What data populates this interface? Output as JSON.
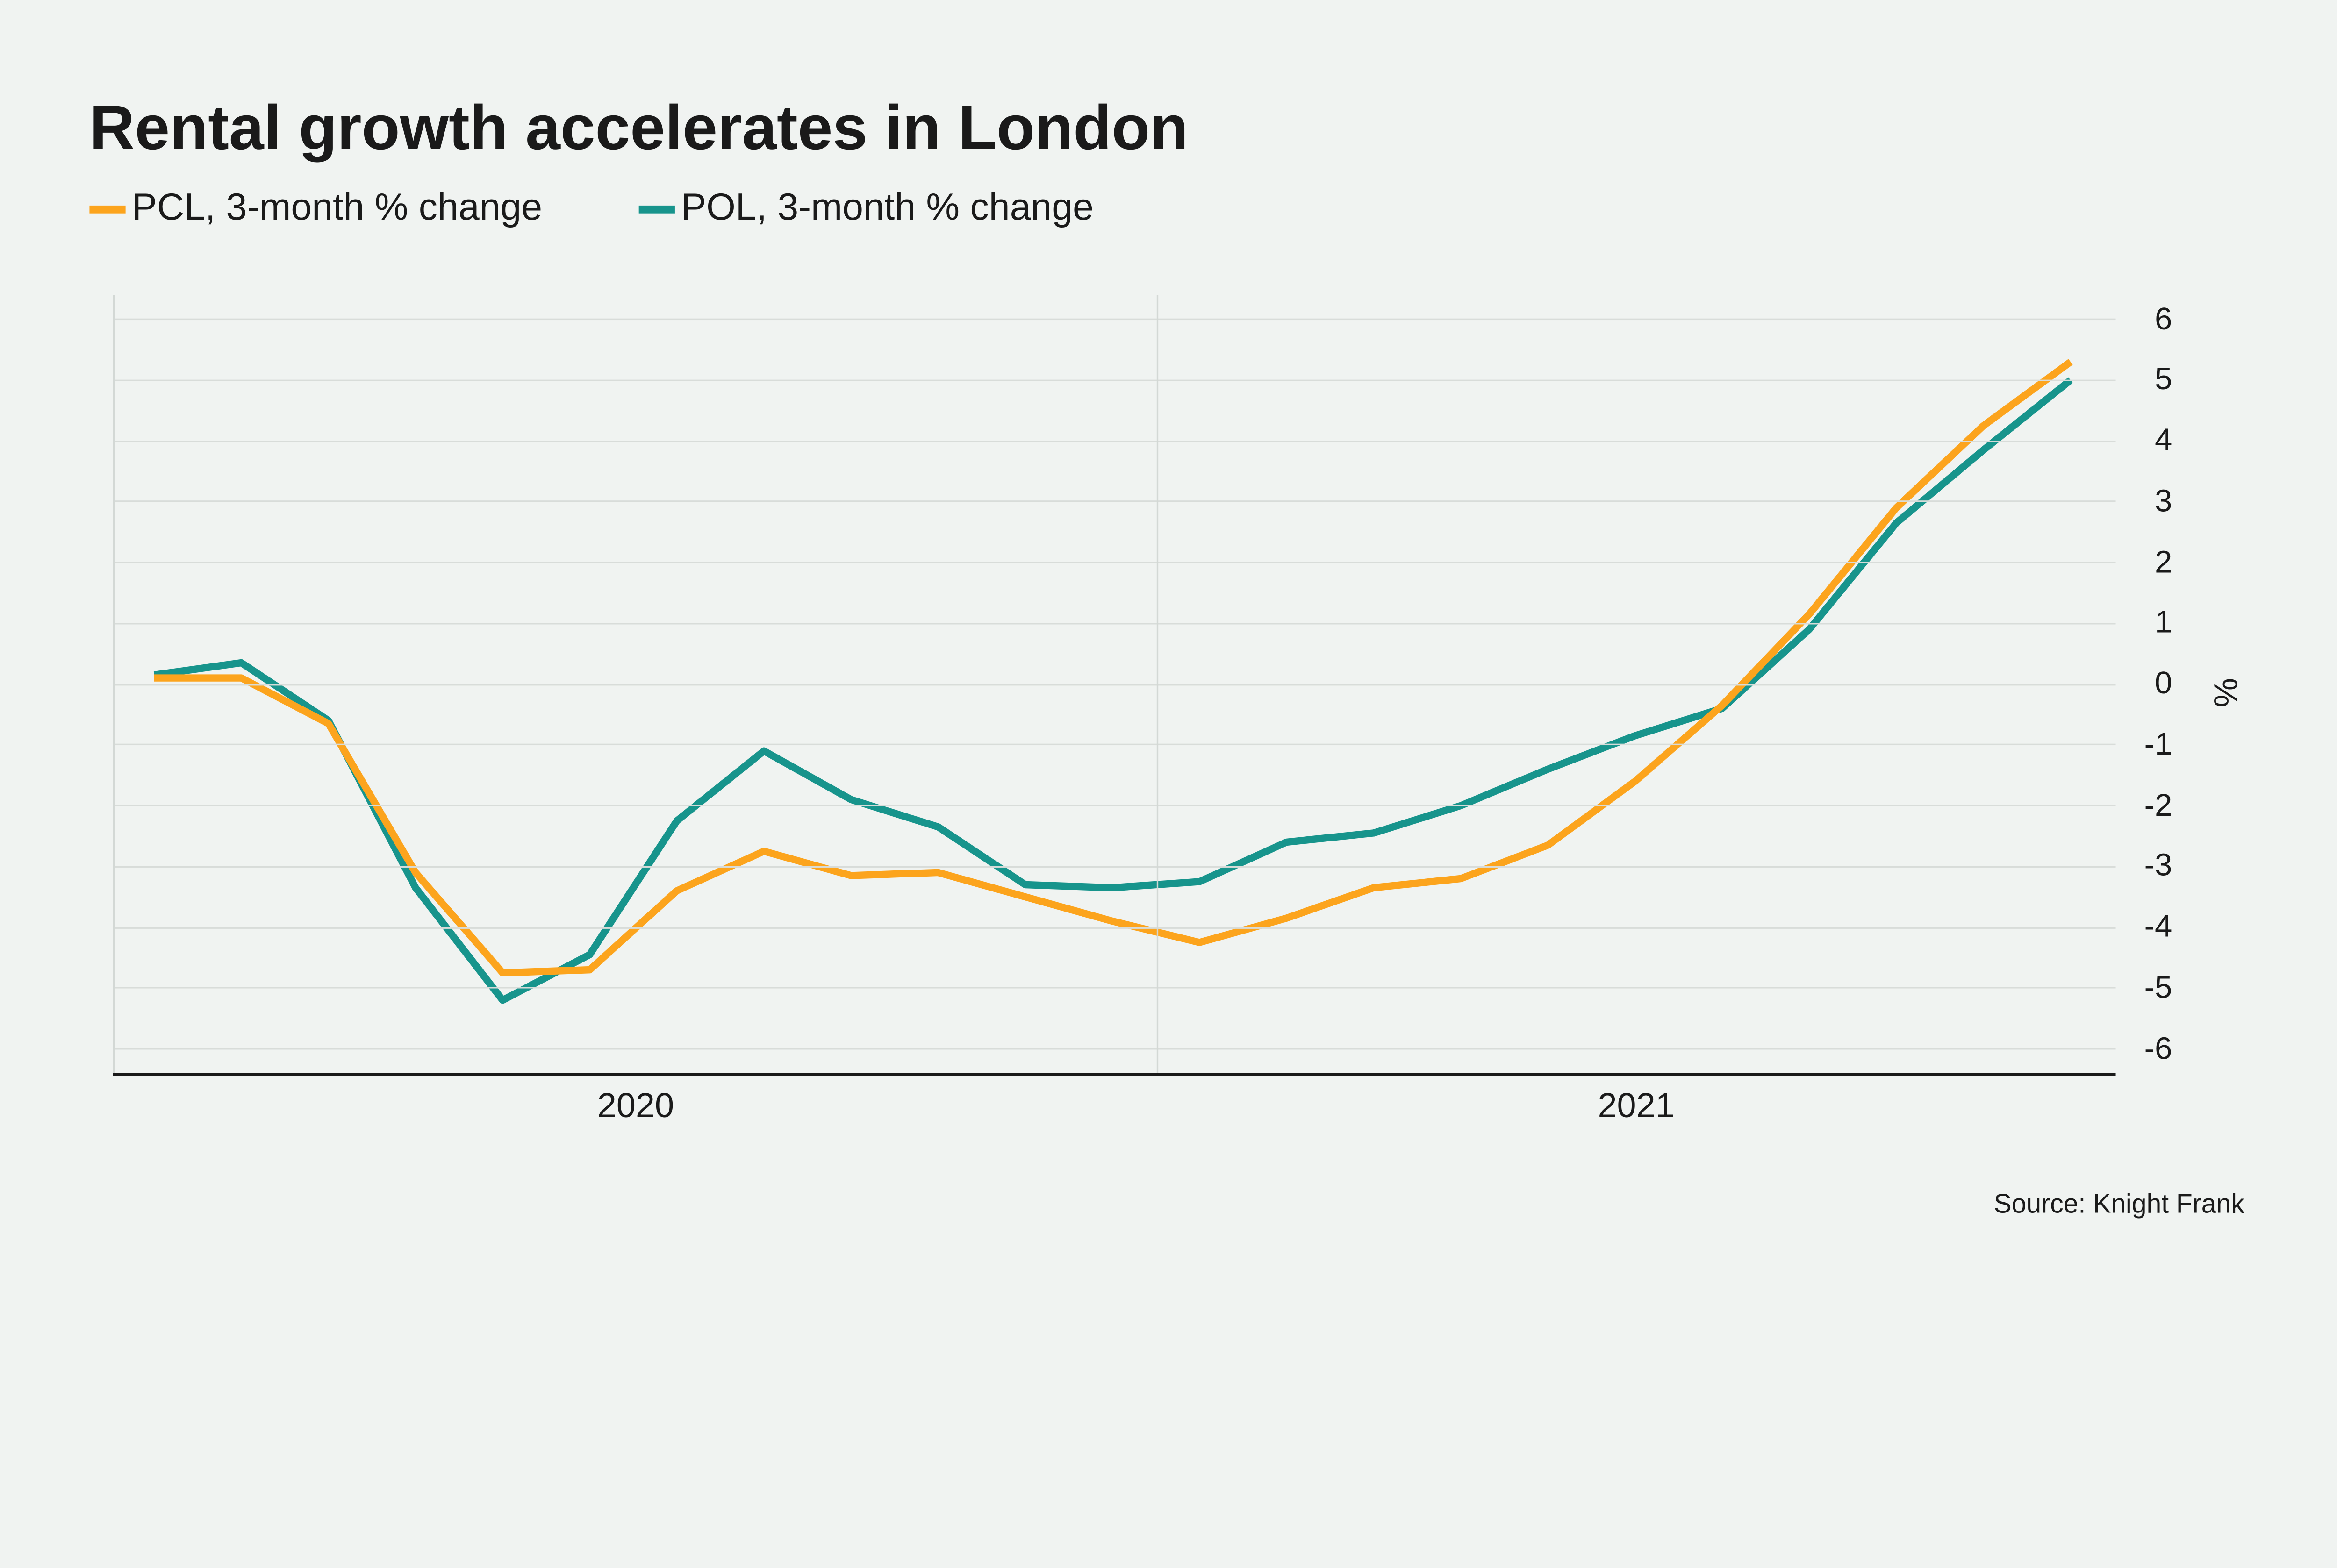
{
  "title": "Rental growth accelerates in London",
  "legend": {
    "items": [
      {
        "label": "PCL, 3-month % change",
        "color": "#FCA41D"
      },
      {
        "label": "POL, 3-month % change",
        "color": "#17948C"
      }
    ]
  },
  "source": "Source: Knight Frank",
  "colors": {
    "background": "#F0F3F1",
    "gridline": "#D8DCD9",
    "axis": "#1A1A1A",
    "text": "#1A1A1A",
    "pcl": "#FCA41D",
    "pol": "#17948C"
  },
  "chart_data": {
    "type": "line",
    "title": "Rental growth accelerates in London",
    "xlabel": "",
    "ylabel": "%",
    "ylim": [
      -6.4,
      6.4
    ],
    "y_ticks": [
      6,
      5,
      4,
      3,
      2,
      1,
      0,
      -1,
      -2,
      -3,
      -4,
      -5,
      -6
    ],
    "x_year_labels": [
      "2020",
      "2021"
    ],
    "grid": true,
    "legend_position": "top",
    "x": [
      "2020-01",
      "2020-02",
      "2020-03",
      "2020-04",
      "2020-05",
      "2020-06",
      "2020-07",
      "2020-08",
      "2020-09",
      "2020-10",
      "2020-11",
      "2020-12",
      "2021-01",
      "2021-02",
      "2021-03",
      "2021-04",
      "2021-05",
      "2021-06",
      "2021-07",
      "2021-08",
      "2021-09",
      "2021-10",
      "2021-11"
    ],
    "series": [
      {
        "name": "POL, 3-month % change",
        "key": "pol",
        "color": "#17948C",
        "values": [
          0.15,
          0.35,
          -0.6,
          -3.35,
          -5.2,
          -4.45,
          -2.25,
          -1.1,
          -1.9,
          -2.35,
          -3.3,
          -3.35,
          -3.25,
          -2.6,
          -2.45,
          -2.0,
          -1.4,
          -0.85,
          -0.4,
          0.9,
          2.65,
          3.85,
          5.0
        ]
      },
      {
        "name": "PCL, 3-month % change",
        "key": "pcl",
        "color": "#FCA41D",
        "values": [
          0.1,
          0.1,
          -0.65,
          -3.1,
          -4.75,
          -4.7,
          -3.4,
          -2.75,
          -3.15,
          -3.1,
          -3.5,
          -3.9,
          -4.25,
          -3.85,
          -3.35,
          -3.2,
          -2.65,
          -1.6,
          -0.35,
          1.15,
          2.9,
          4.25,
          5.3
        ]
      }
    ]
  }
}
